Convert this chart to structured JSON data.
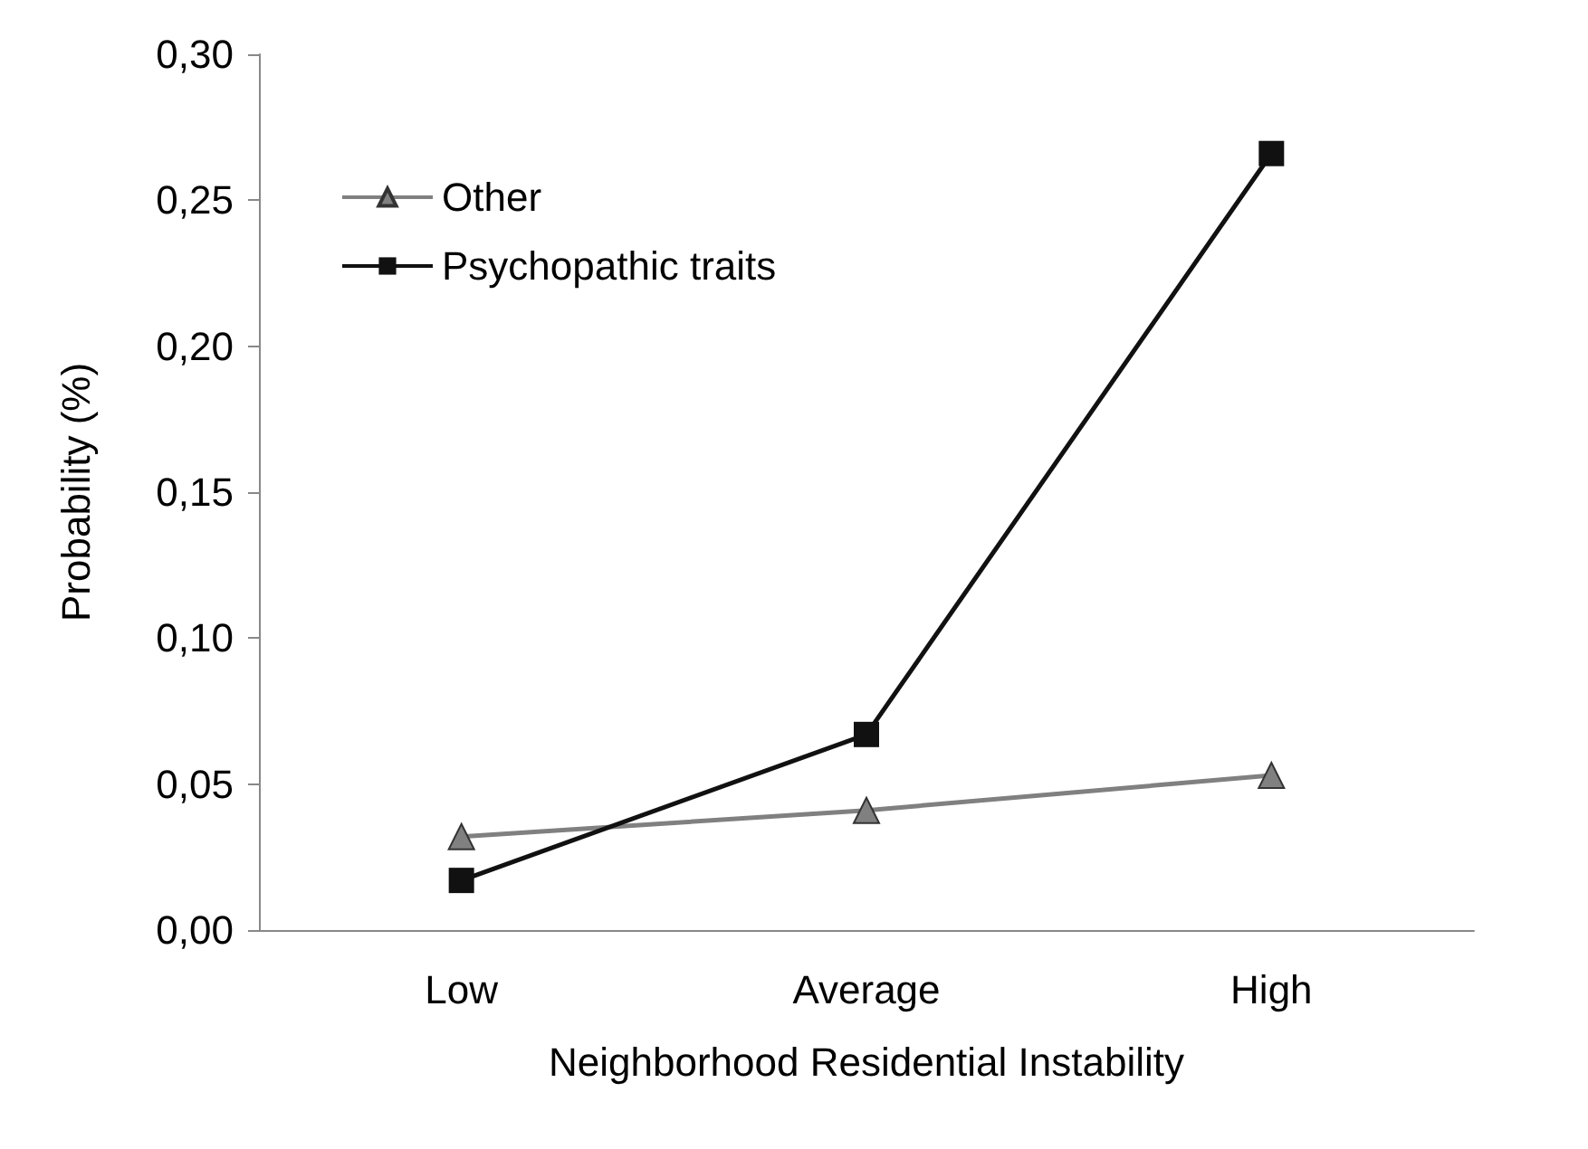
{
  "chart_data": {
    "type": "line",
    "xlabel": "Neighborhood Residential Instability",
    "ylabel": "Probability (%)",
    "categories": [
      "Low",
      "Average",
      "High"
    ],
    "series": [
      {
        "name": "Other",
        "color": "#808080",
        "values": [
          0.032,
          0.041,
          0.053
        ],
        "marker": "triangle"
      },
      {
        "name": "Psychopathic traits",
        "color": "#111111",
        "values": [
          0.017,
          0.067,
          0.266
        ],
        "marker": "square"
      }
    ],
    "ylim": [
      0,
      0.3
    ],
    "yticks": [
      {
        "value": 0,
        "label": "0,00"
      },
      {
        "value": 0.05,
        "label": "0,05"
      },
      {
        "value": 0.1,
        "label": "0,10"
      },
      {
        "value": 0.15,
        "label": "0,15"
      },
      {
        "value": 0.2,
        "label": "0,20"
      },
      {
        "value": 0.25,
        "label": "0,25"
      },
      {
        "value": 0.3,
        "label": "0,30"
      }
    ],
    "grid": false,
    "legend": "top left"
  }
}
